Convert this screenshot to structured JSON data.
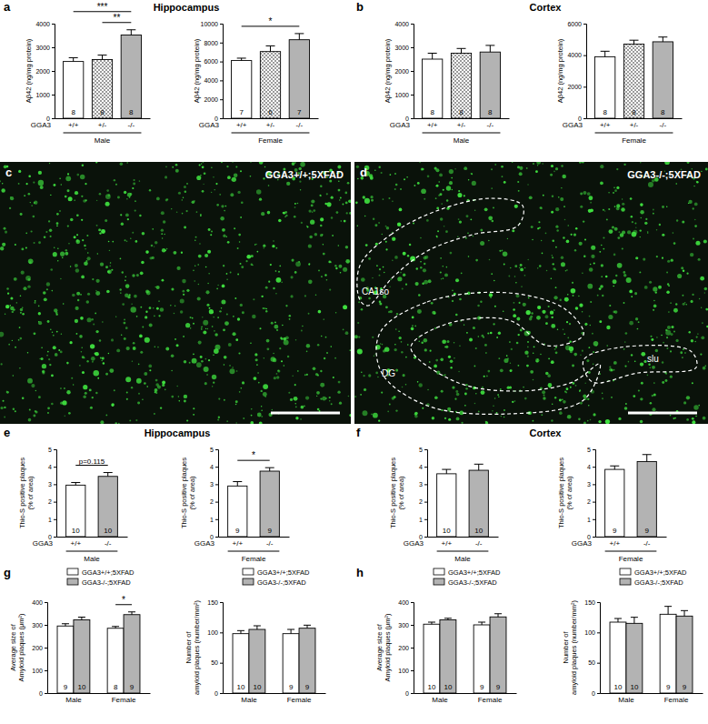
{
  "panels": [
    {
      "label": "a",
      "title": "Hippocampus"
    },
    {
      "label": "b",
      "title": "Cortex"
    },
    {
      "label": "c",
      "image_label": "GGA3+/+;5XFAD"
    },
    {
      "label": "d",
      "image_label": "GGA3-/-;5XFAD",
      "regions": [
        "CA1so",
        "DG",
        "slu"
      ]
    },
    {
      "label": "e",
      "title": "Hippocampus"
    },
    {
      "label": "f",
      "title": "Cortex"
    },
    {
      "label": "g"
    },
    {
      "label": "h"
    }
  ],
  "chart_data": [
    {
      "type": "bar",
      "categories": [
        "+/+",
        "+/-",
        "-/-"
      ],
      "values": [
        2400,
        2480,
        3520
      ],
      "errors": [
        160,
        190,
        220
      ],
      "n": [
        8,
        8,
        8
      ],
      "colors": [
        "#ffffff",
        "#ffffff",
        "#b3b3b3"
      ],
      "y_label": [
        "Aβ42 (ng/mg protein)"
      ],
      "ylim": [
        0,
        4000
      ],
      "yticks": [
        0,
        1000,
        2000,
        3000,
        4000
      ],
      "row_label": "GGA3",
      "group_label": "Male",
      "significance": [
        {
          "pair": [
            "+/+",
            "-/-"
          ],
          "label": "***"
        },
        {
          "pair": [
            "+/-",
            "-/-"
          ],
          "label": "**"
        }
      ]
    },
    {
      "type": "bar",
      "categories": [
        "+/+",
        "+/-",
        "-/-"
      ],
      "values": [
        6100,
        7050,
        8300
      ],
      "errors": [
        250,
        600,
        650
      ],
      "n": [
        7,
        6,
        7
      ],
      "colors": [
        "#ffffff",
        "#ffffff",
        "#b3b3b3"
      ],
      "y_label": [
        "Aβ42 (ng/mg protein)"
      ],
      "ylim": [
        0,
        10000
      ],
      "yticks": [
        0,
        2000,
        4000,
        6000,
        8000,
        10000
      ],
      "row_label": "GGA3",
      "group_label": "Female",
      "significance": [
        {
          "pair": [
            "+/+",
            "-/-"
          ],
          "label": "*"
        }
      ]
    },
    {
      "type": "bar",
      "categories": [
        "+/+",
        "+/-",
        "-/-"
      ],
      "values": [
        2500,
        2750,
        2800
      ],
      "errors": [
        250,
        200,
        280
      ],
      "n": [
        8,
        8,
        8
      ],
      "colors": [
        "#ffffff",
        "#ffffff",
        "#b3b3b3"
      ],
      "y_label": [
        "Aβ42 (ng/mg protein)"
      ],
      "ylim": [
        0,
        4000
      ],
      "yticks": [
        0,
        1000,
        2000,
        3000,
        4000
      ],
      "row_label": "GGA3",
      "group_label": "Male"
    },
    {
      "type": "bar",
      "categories": [
        "+/+",
        "+/-",
        "-/-"
      ],
      "values": [
        3900,
        4700,
        4850
      ],
      "errors": [
        350,
        250,
        300
      ],
      "n": [
        8,
        8,
        8
      ],
      "colors": [
        "#ffffff",
        "#ffffff",
        "#b3b3b3"
      ],
      "y_label": [
        "Aβ42 (ng/mg protein)"
      ],
      "ylim": [
        0,
        6000
      ],
      "yticks": [
        0,
        2000,
        4000,
        6000
      ],
      "row_label": "GGA3",
      "group_label": "Female"
    },
    {
      "type": "bar",
      "categories": [
        "+/+",
        "-/-"
      ],
      "values": [
        2.95,
        3.45
      ],
      "errors": [
        0.15,
        0.22
      ],
      "n": [
        10,
        10
      ],
      "colors": [
        "#ffffff",
        "#b3b3b3"
      ],
      "y_label": [
        "Thio-S positive plaques",
        "(% of area)"
      ],
      "ylim": [
        0,
        5
      ],
      "yticks": [
        0,
        1,
        2,
        3,
        4,
        5
      ],
      "row_label": "GGA3",
      "group_label": "Male",
      "significance": [
        {
          "pair": [
            "+/+",
            "-/-"
          ],
          "label": "p=0.115"
        }
      ]
    },
    {
      "type": "bar",
      "categories": [
        "+/+",
        "-/-"
      ],
      "values": [
        2.9,
        3.75
      ],
      "errors": [
        0.25,
        0.2
      ],
      "n": [
        9,
        9
      ],
      "colors": [
        "#ffffff",
        "#b3b3b3"
      ],
      "y_label": [
        "Thio-S positive plaques",
        "(% of area)"
      ],
      "ylim": [
        0,
        5
      ],
      "yticks": [
        0,
        1,
        2,
        3,
        4,
        5
      ],
      "row_label": "GGA3",
      "group_label": "Female",
      "significance": [
        {
          "pair": [
            "+/+",
            "-/-"
          ],
          "label": "*"
        }
      ]
    },
    {
      "type": "bar",
      "categories": [
        "+/+",
        "-/-"
      ],
      "values": [
        3.6,
        3.8
      ],
      "errors": [
        0.25,
        0.35
      ],
      "n": [
        10,
        10
      ],
      "colors": [
        "#ffffff",
        "#b3b3b3"
      ],
      "y_label": [
        "Thio-S positive plaques",
        "(% of area)"
      ],
      "ylim": [
        0,
        5
      ],
      "yticks": [
        0,
        1,
        2,
        3,
        4,
        5
      ],
      "row_label": "GGA3",
      "group_label": "Male"
    },
    {
      "type": "bar",
      "categories": [
        "+/+",
        "-/-"
      ],
      "values": [
        3.85,
        4.3
      ],
      "errors": [
        0.2,
        0.4
      ],
      "n": [
        9,
        9
      ],
      "colors": [
        "#ffffff",
        "#b3b3b3"
      ],
      "y_label": [
        "Thio-S positive plaques",
        "(% of area)"
      ],
      "ylim": [
        0,
        5
      ],
      "yticks": [
        0,
        1,
        2,
        3,
        4,
        5
      ],
      "row_label": "GGA3",
      "group_label": "Female"
    },
    {
      "type": "bar",
      "categories": [
        "Male",
        "Female"
      ],
      "legend": "top",
      "series": [
        {
          "name": "GGA3+/+;5XFAD",
          "color": "#ffffff",
          "values": [
            295,
            285
          ],
          "errors": [
            10,
            8
          ],
          "n": [
            9,
            8
          ]
        },
        {
          "name": "GGA3-/-;5XFAD",
          "color": "#b3b3b3",
          "values": [
            322,
            345
          ],
          "errors": [
            12,
            12
          ],
          "n": [
            10,
            9
          ]
        }
      ],
      "y_label": [
        "Average size of",
        "Amyloid plaques (μm²)"
      ],
      "ylim": [
        0,
        400
      ],
      "yticks": [
        0,
        100,
        200,
        300,
        400
      ],
      "significance": [
        {
          "category": "Female",
          "label": "*"
        }
      ]
    },
    {
      "type": "bar",
      "categories": [
        "Male",
        "Female"
      ],
      "legend": "top",
      "series": [
        {
          "name": "GGA3+/+;5XFAD",
          "color": "#ffffff",
          "values": [
            98,
            98
          ],
          "errors": [
            5,
            7
          ],
          "n": [
            10,
            9
          ]
        },
        {
          "name": "GGA3-/-;5XFAD",
          "color": "#b3b3b3",
          "values": [
            105,
            107
          ],
          "errors": [
            6,
            5
          ],
          "n": [
            10,
            9
          ]
        }
      ],
      "y_label": [
        "Number of",
        "amyloid plaques (number/mm²)"
      ],
      "ylim": [
        0,
        150
      ],
      "yticks": [
        0,
        50,
        100,
        150
      ]
    },
    {
      "type": "bar",
      "categories": [
        "Male",
        "Female"
      ],
      "legend": "top",
      "series": [
        {
          "name": "GGA3+/+;5XFAD",
          "color": "#ffffff",
          "values": [
            303,
            300
          ],
          "errors": [
            9,
            12
          ],
          "n": [
            10,
            9
          ]
        },
        {
          "name": "GGA3-/-;5XFAD",
          "color": "#b3b3b3",
          "values": [
            322,
            335
          ],
          "errors": [
            7,
            14
          ],
          "n": [
            10,
            9
          ]
        }
      ],
      "y_label": [
        "Average size of",
        "Amyloid plaques (μm²)"
      ],
      "ylim": [
        0,
        400
      ],
      "yticks": [
        0,
        100,
        200,
        300,
        400
      ]
    },
    {
      "type": "bar",
      "categories": [
        "Male",
        "Female"
      ],
      "legend": "top",
      "series": [
        {
          "name": "GGA3+/+;5XFAD",
          "color": "#ffffff",
          "values": [
            117,
            130
          ],
          "errors": [
            6,
            13
          ],
          "n": [
            10,
            9
          ]
        },
        {
          "name": "GGA3-/-;5XFAD",
          "color": "#b3b3b3",
          "values": [
            115,
            127
          ],
          "errors": [
            10,
            9
          ],
          "n": [
            10,
            9
          ]
        }
      ],
      "y_label": [
        "Number of",
        "amyloid plaques (number/mm²)"
      ],
      "ylim": [
        0,
        150
      ],
      "yticks": [
        0,
        50,
        100,
        150
      ]
    }
  ]
}
